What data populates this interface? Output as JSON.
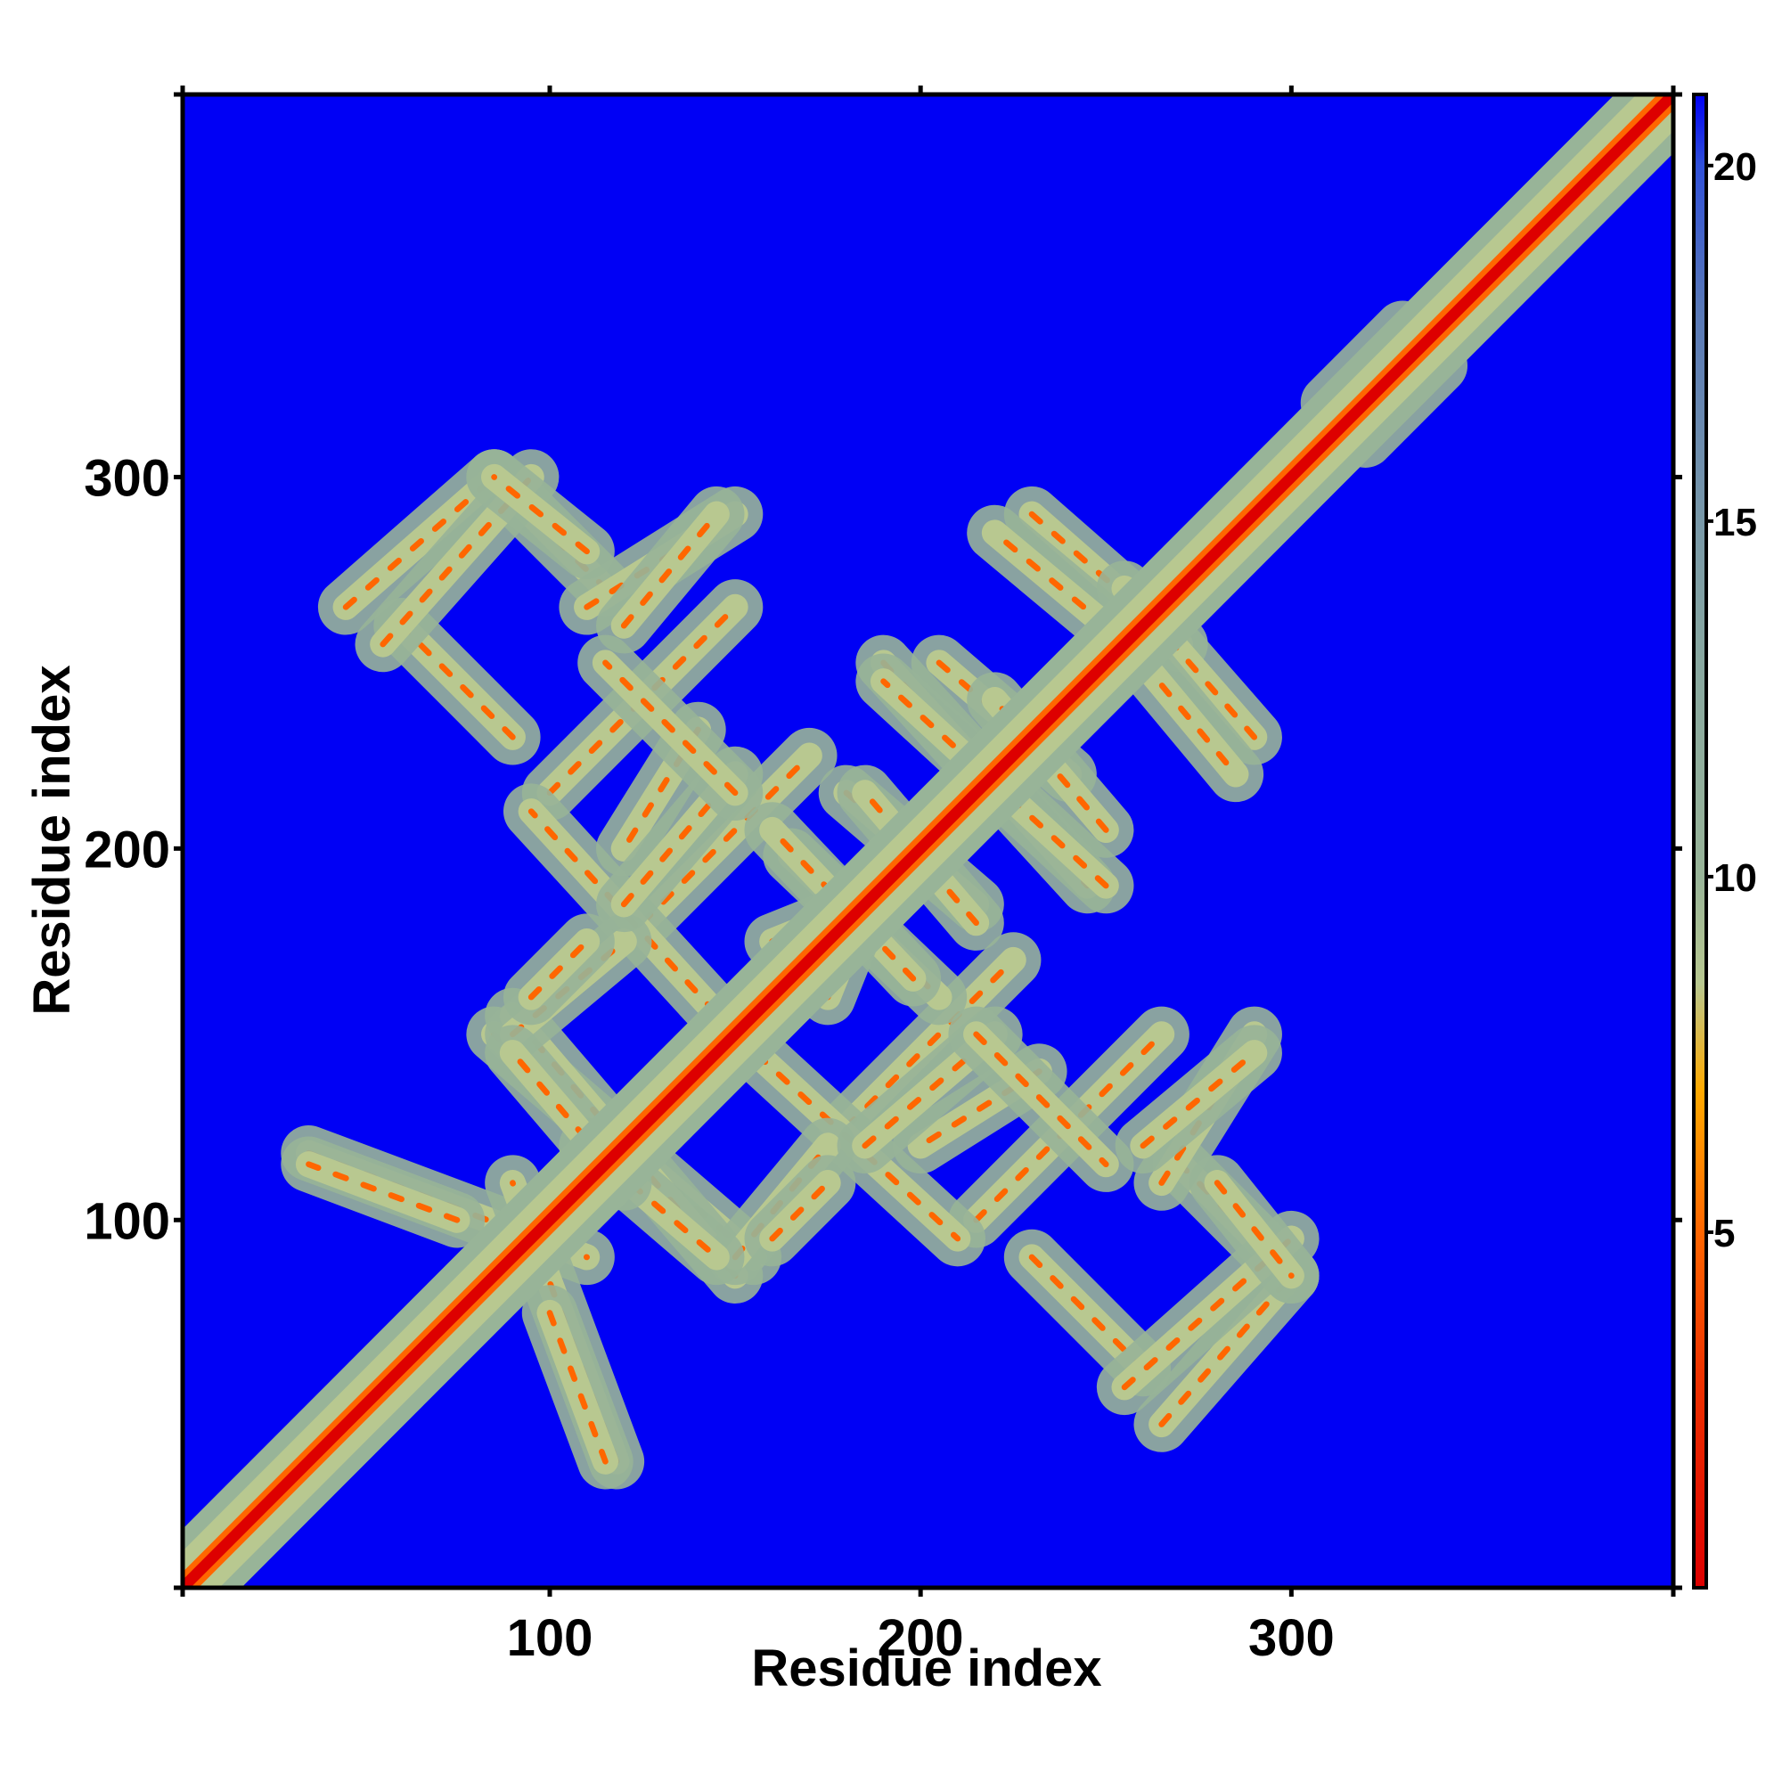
{
  "chart_data": {
    "type": "heatmap",
    "description_free": true,
    "xlabel": "Residue index",
    "ylabel": "Residue index",
    "xlim": [
      1,
      403
    ],
    "ylim": [
      1,
      403
    ],
    "x_ticks": [
      100,
      200,
      300
    ],
    "y_ticks": [
      100,
      200,
      300
    ],
    "colorbar": {
      "range": [
        0,
        21
      ],
      "ticks": [
        5,
        10,
        15,
        20
      ],
      "stops": [
        {
          "value": 0,
          "color": "#dd0000"
        },
        {
          "value": 3,
          "color": "#ee3300"
        },
        {
          "value": 5,
          "color": "#ff6600"
        },
        {
          "value": 7,
          "color": "#ffaa00"
        },
        {
          "value": 8.5,
          "color": "#b8c890"
        },
        {
          "value": 10,
          "color": "#98b498"
        },
        {
          "value": 13,
          "color": "#88a8a0"
        },
        {
          "value": 15,
          "color": "#7898a8"
        },
        {
          "value": 18,
          "color": "#5878b8"
        },
        {
          "value": 20,
          "color": "#3050d8"
        },
        {
          "value": 21,
          "color": "#0000f5"
        }
      ]
    },
    "background_color": "#0000f5",
    "diagonal": {
      "from": [
        1,
        1
      ],
      "to": [
        403,
        403
      ],
      "core_width": 6,
      "halo_width": 14
    },
    "bands": [
      {
        "from": [
          45,
          265
        ],
        "to": [
          85,
          300
        ]
      },
      {
        "from": [
          85,
          300
        ],
        "to": [
          115,
          270
        ]
      },
      {
        "from": [
          100,
          215
        ],
        "to": [
          150,
          265
        ]
      },
      {
        "from": [
          110,
          265
        ],
        "to": [
          150,
          290
        ]
      },
      {
        "from": [
          125,
          180
        ],
        "to": [
          170,
          225
        ]
      },
      {
        "from": [
          140,
          232
        ],
        "to": [
          120,
          200
        ]
      },
      {
        "from": [
          150,
          150
        ],
        "to": [
          210,
          95
        ]
      },
      {
        "from": [
          165,
          198
        ],
        "to": [
          205,
          160
        ]
      },
      {
        "from": [
          175,
          160
        ],
        "to": [
          185,
          185
        ]
      },
      {
        "from": [
          180,
          215
        ],
        "to": [
          215,
          185
        ]
      },
      {
        "from": [
          190,
          250
        ],
        "to": [
          245,
          190
        ]
      },
      {
        "from": [
          205,
          250
        ],
        "to": [
          240,
          220
        ]
      },
      {
        "from": [
          230,
          290
        ],
        "to": [
          270,
          255
        ]
      },
      {
        "from": [
          260,
          250
        ],
        "to": [
          285,
          220
        ]
      },
      {
        "from": [
          35,
          118
        ],
        "to": [
          110,
          90
        ]
      },
      {
        "from": [
          85,
          150
        ],
        "to": [
          155,
          90
        ]
      },
      {
        "from": [
          90,
          150
        ],
        "to": [
          120,
          175
        ]
      },
      {
        "from": [
          110,
          120
        ],
        "to": [
          145,
          90
        ]
      },
      {
        "from": [
          160,
          95
        ],
        "to": [
          175,
          110
        ]
      },
      {
        "from": [
          100,
          75
        ],
        "to": [
          115,
          35
        ]
      },
      {
        "from": [
          185,
          120
        ],
        "to": [
          220,
          150
        ]
      },
      {
        "from": [
          215,
          150
        ],
        "to": [
          250,
          115
        ]
      },
      {
        "from": [
          230,
          90
        ],
        "to": [
          260,
          60
        ]
      },
      {
        "from": [
          255,
          55
        ],
        "to": [
          300,
          95
        ]
      },
      {
        "from": [
          260,
          120
        ],
        "to": [
          290,
          145
        ]
      },
      {
        "from": [
          280,
          110
        ],
        "to": [
          300,
          85
        ]
      },
      {
        "from": [
          310,
          320
        ],
        "to": [
          330,
          340
        ]
      }
    ]
  }
}
